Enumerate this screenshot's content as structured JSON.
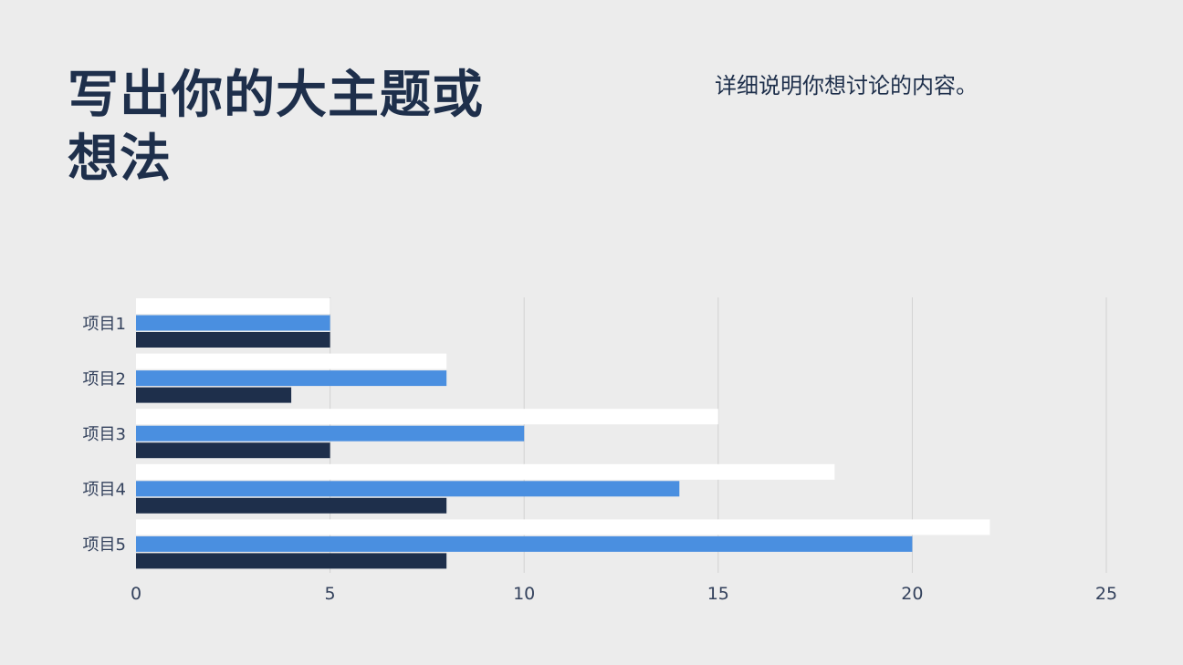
{
  "slide": {
    "title": "写出你的大主题或想法",
    "subtitle": "详细说明你想讨论的内容。"
  },
  "colors": {
    "background": "#ececec",
    "title": "#1e2f4b",
    "gridline": "#d2d2d2"
  },
  "chart_data": {
    "type": "bar",
    "orientation": "horizontal",
    "categories": [
      "项目1",
      "项目2",
      "项目3",
      "项目4",
      "项目5"
    ],
    "series": [
      {
        "values": [
          5,
          8,
          15,
          18,
          22
        ],
        "color": "#ffffff"
      },
      {
        "values": [
          5,
          8,
          10,
          14,
          20
        ],
        "color": "#4a8fe0"
      },
      {
        "values": [
          5,
          4,
          5,
          8,
          8
        ],
        "color": "#1e2f4b"
      }
    ],
    "xlim": [
      0,
      25
    ],
    "xticks": [
      0,
      5,
      10,
      15,
      20,
      25
    ],
    "grid": true,
    "legend": "none"
  }
}
